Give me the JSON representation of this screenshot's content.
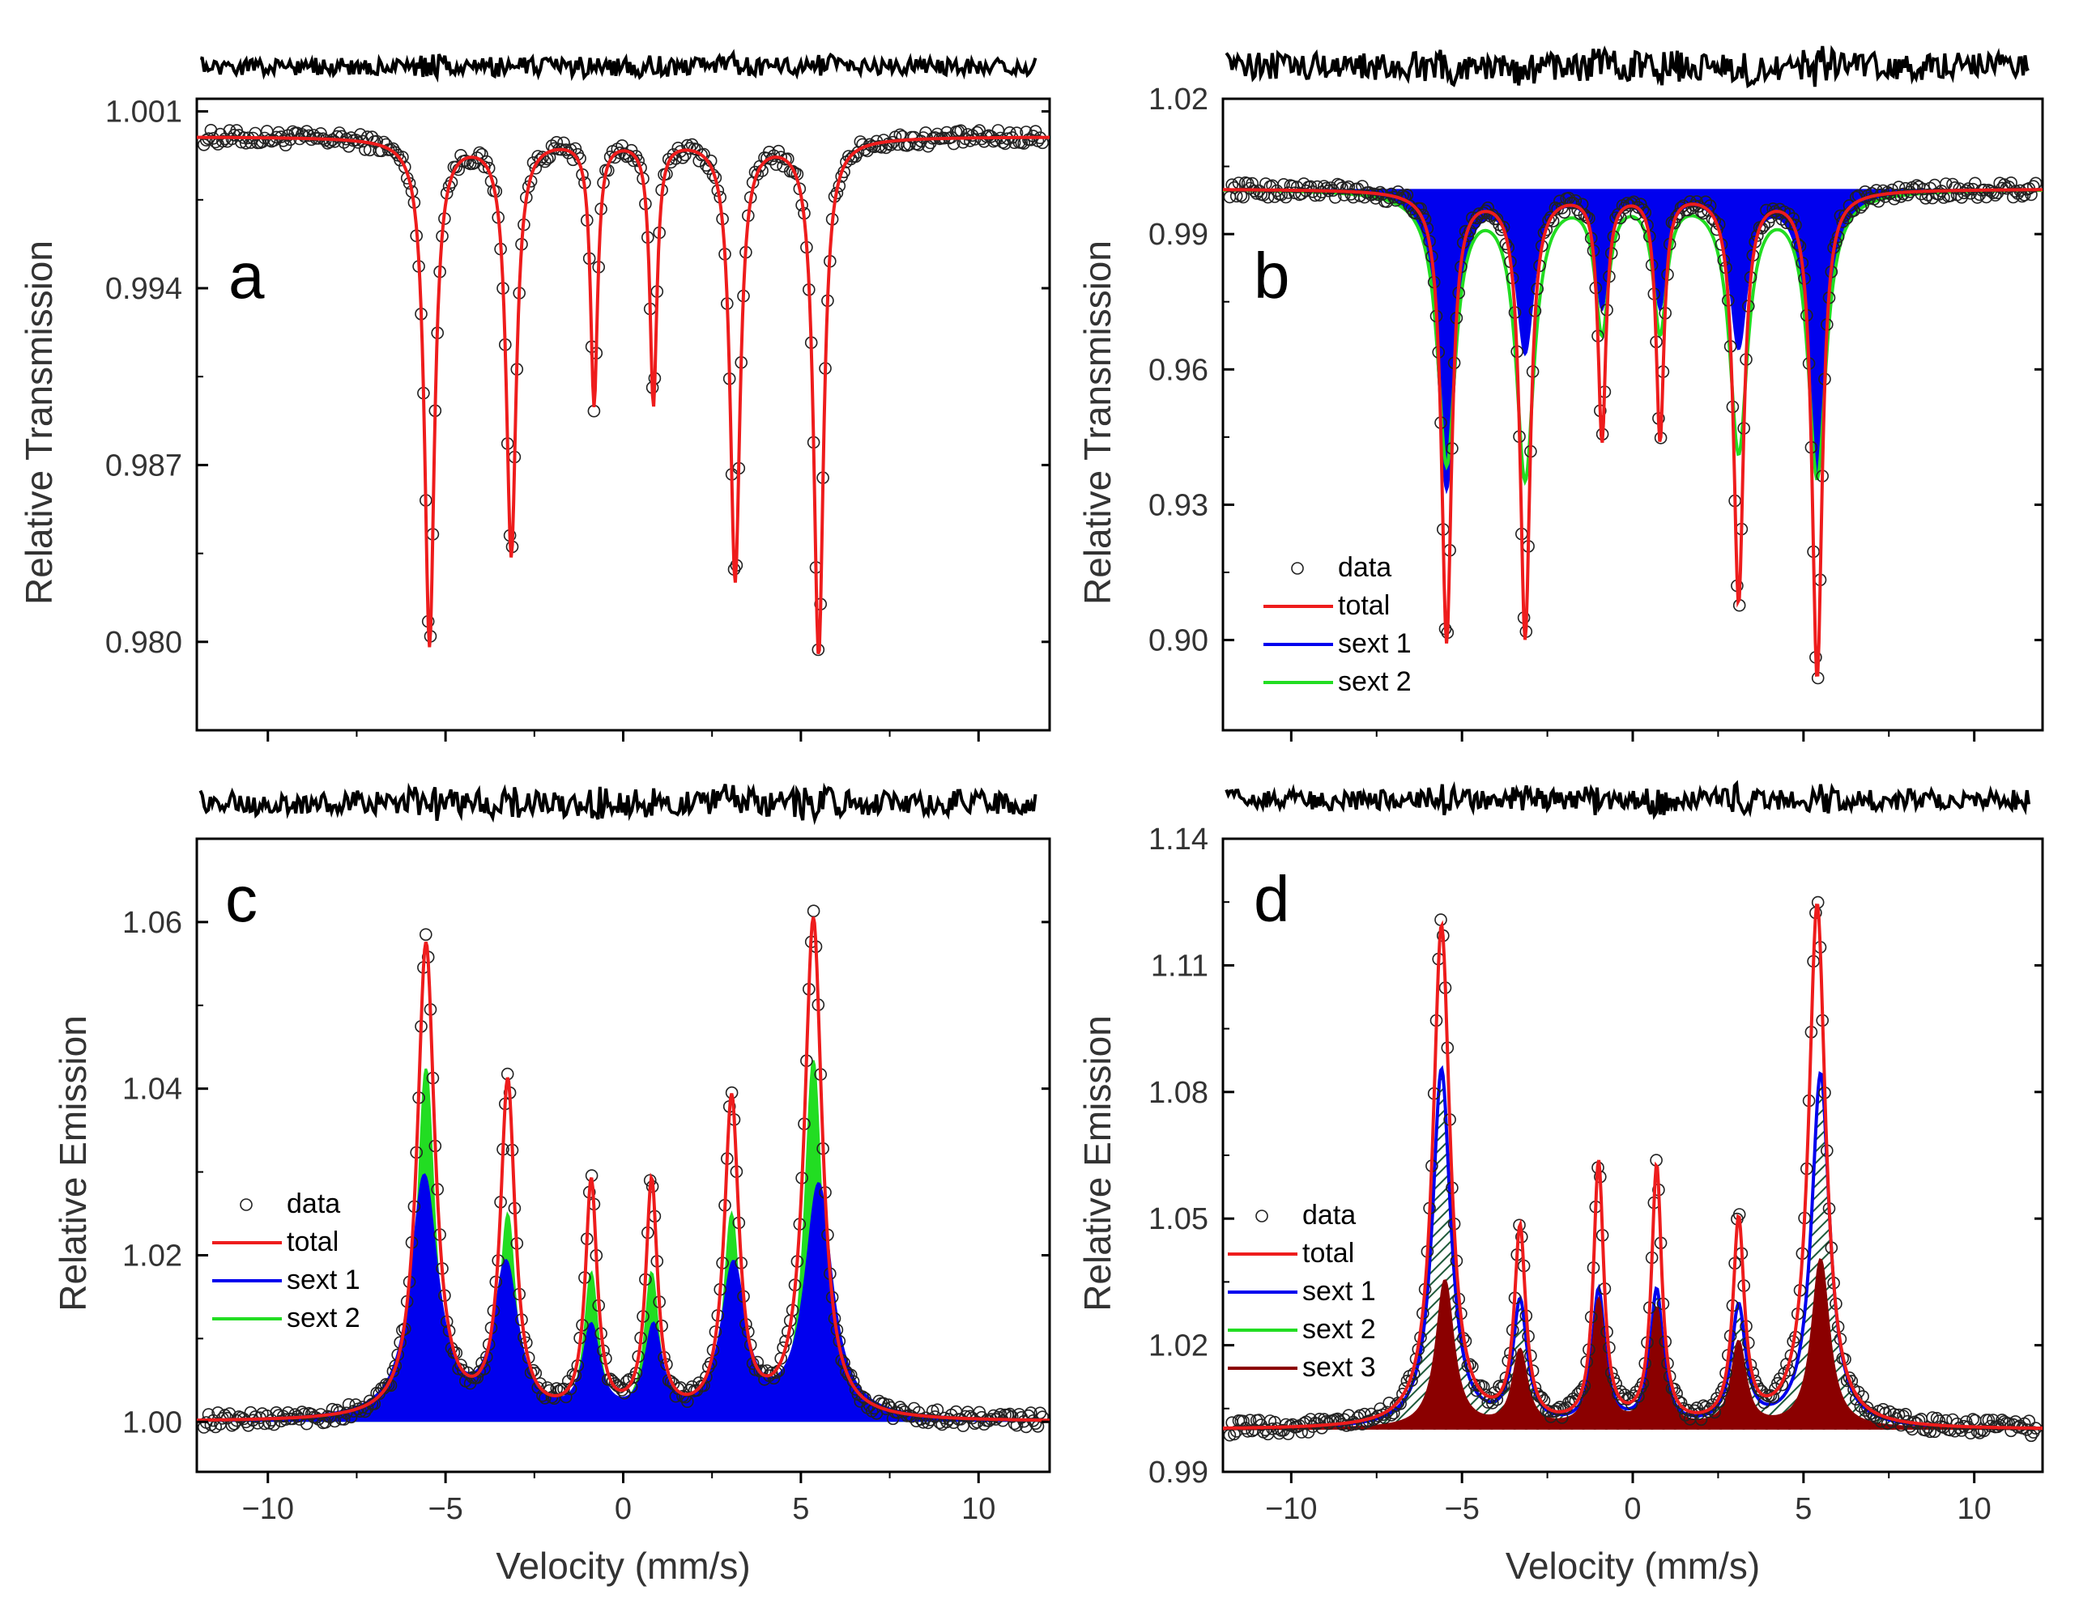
{
  "figure": {
    "description": "Four-panel Mössbauer spectroscopy figure with fit residuals above each panel"
  },
  "chart_data": [
    {
      "id": "a",
      "type": "line",
      "panel_label": "a",
      "xlabel": "",
      "ylabel": "Relative Transmission",
      "xlim": [
        -12,
        12
      ],
      "ylim": [
        0.9765,
        1.0015
      ],
      "yticks": [
        1.001,
        0.994,
        0.987,
        0.98
      ],
      "ytick_labels": [
        "1.001",
        "0.994",
        "0.987",
        "0.980"
      ],
      "xticks": [
        -10,
        -5,
        0,
        5,
        10
      ],
      "xtick_labels": [],
      "baseline": 1.0,
      "legend": [],
      "total": {
        "name": "",
        "color": "#ee1c1c",
        "peaks": [
          {
            "pos": -5.45,
            "depth": 0.0201,
            "hwhm": 0.17
          },
          {
            "pos": -3.15,
            "depth": 0.0165,
            "hwhm": 0.17
          },
          {
            "pos": -0.82,
            "depth": 0.0105,
            "hwhm": 0.12
          },
          {
            "pos": 0.85,
            "depth": 0.0105,
            "hwhm": 0.12
          },
          {
            "pos": 3.15,
            "depth": 0.0175,
            "hwhm": 0.17
          },
          {
            "pos": 5.5,
            "depth": 0.0205,
            "hwhm": 0.17
          }
        ]
      },
      "components": [],
      "residual_color": "#000000",
      "residual_amplitude": 0.35
    },
    {
      "id": "b",
      "type": "line",
      "panel_label": "b",
      "xlabel": "",
      "ylabel": "Relative Transmission",
      "xlim": [
        -12,
        12
      ],
      "ylim": [
        0.88,
        1.02
      ],
      "yticks": [
        1.02,
        0.99,
        0.96,
        0.93,
        0.9
      ],
      "ytick_labels": [
        "1.02",
        "0.99",
        "0.96",
        "0.93",
        "0.90"
      ],
      "xticks": [
        -10,
        -5,
        0,
        5,
        10
      ],
      "xtick_labels": [],
      "baseline": 1.0,
      "legend": [
        {
          "label": "data",
          "style": "circle",
          "color": "#000000"
        },
        {
          "label": "total",
          "style": "line",
          "color": "#ee1c1c"
        },
        {
          "label": "sext 1",
          "style": "line",
          "color": "#0000ee"
        },
        {
          "label": "sext 2",
          "style": "line",
          "color": "#22dd22"
        }
      ],
      "total": {
        "name": "total",
        "color": "#ee1c1c",
        "peaks": [
          {
            "pos": -5.45,
            "depth": 0.1,
            "hwhm": 0.18
          },
          {
            "pos": -3.15,
            "depth": 0.099,
            "hwhm": 0.18
          },
          {
            "pos": -0.9,
            "depth": 0.055,
            "hwhm": 0.14
          },
          {
            "pos": 0.8,
            "depth": 0.055,
            "hwhm": 0.14
          },
          {
            "pos": 3.1,
            "depth": 0.091,
            "hwhm": 0.18
          },
          {
            "pos": 5.4,
            "depth": 0.108,
            "hwhm": 0.18
          }
        ]
      },
      "components": [
        {
          "name": "sext 1",
          "color": "#0000ee",
          "fill": true,
          "peaks": [
            {
              "pos": -5.45,
              "depth": 0.066,
              "hwhm": 0.3
            },
            {
              "pos": -3.15,
              "depth": 0.035,
              "hwhm": 0.3
            },
            {
              "pos": -0.9,
              "depth": 0.025,
              "hwhm": 0.22
            },
            {
              "pos": 0.8,
              "depth": 0.025,
              "hwhm": 0.22
            },
            {
              "pos": 3.1,
              "depth": 0.034,
              "hwhm": 0.3
            },
            {
              "pos": 5.4,
              "depth": 0.063,
              "hwhm": 0.3
            }
          ]
        },
        {
          "name": "sext 2",
          "color": "#22dd22",
          "fill": false,
          "peaks": [
            {
              "pos": -5.45,
              "depth": 0.06,
              "hwhm": 0.32
            },
            {
              "pos": -3.15,
              "depth": 0.063,
              "hwhm": 0.32
            },
            {
              "pos": -0.9,
              "depth": 0.03,
              "hwhm": 0.24
            },
            {
              "pos": 0.8,
              "depth": 0.03,
              "hwhm": 0.24
            },
            {
              "pos": 3.1,
              "depth": 0.057,
              "hwhm": 0.32
            },
            {
              "pos": 5.4,
              "depth": 0.063,
              "hwhm": 0.32
            }
          ]
        }
      ],
      "residual_color": "#000000",
      "residual_amplitude": 0.55
    },
    {
      "id": "c",
      "type": "line",
      "panel_label": "c",
      "xlabel": "Velocity (mm/s)",
      "ylabel": "Relative Emission",
      "xlim": [
        -12,
        12
      ],
      "ylim": [
        0.994,
        1.07
      ],
      "yticks": [
        1.06,
        1.04,
        1.02,
        1.0
      ],
      "ytick_labels": [
        "1.06",
        "1.04",
        "1.02",
        "1.00"
      ],
      "xticks": [
        -10,
        -5,
        0,
        5,
        10
      ],
      "xtick_labels": [
        "−10",
        "−5",
        "0",
        "5",
        "10"
      ],
      "baseline": 1.0,
      "legend": [
        {
          "label": "data",
          "style": "circle",
          "color": "#000000"
        },
        {
          "label": "total",
          "style": "line",
          "color": "#ee1c1c"
        },
        {
          "label": "sext 1",
          "style": "line",
          "color": "#0000ee"
        },
        {
          "label": "sext 2",
          "style": "line",
          "color": "#22dd22"
        }
      ],
      "total": {
        "name": "total",
        "color": "#ee1c1c",
        "peaks": [
          {
            "pos": -5.55,
            "depth": -0.057,
            "hwhm": 0.3
          },
          {
            "pos": -3.25,
            "depth": -0.04,
            "hwhm": 0.25
          },
          {
            "pos": -0.9,
            "depth": -0.028,
            "hwhm": 0.2
          },
          {
            "pos": 0.8,
            "depth": -0.028,
            "hwhm": 0.2
          },
          {
            "pos": 3.05,
            "depth": -0.038,
            "hwhm": 0.25
          },
          {
            "pos": 5.35,
            "depth": -0.06,
            "hwhm": 0.3
          }
        ]
      },
      "components": [
        {
          "name": "sext 2",
          "color": "#22dd22",
          "fill": true,
          "peaks": [
            {
              "pos": -5.55,
              "depth": -0.042,
              "hwhm": 0.28
            },
            {
              "pos": -3.25,
              "depth": -0.024,
              "hwhm": 0.25
            },
            {
              "pos": -0.9,
              "depth": -0.017,
              "hwhm": 0.22
            },
            {
              "pos": 0.8,
              "depth": -0.017,
              "hwhm": 0.22
            },
            {
              "pos": 3.05,
              "depth": -0.024,
              "hwhm": 0.25
            },
            {
              "pos": 5.35,
              "depth": -0.043,
              "hwhm": 0.28
            }
          ]
        },
        {
          "name": "sext 1",
          "color": "#0000ee",
          "fill": true,
          "peaks": [
            {
              "pos": -5.6,
              "depth": -0.029,
              "hwhm": 0.45
            },
            {
              "pos": -3.3,
              "depth": -0.018,
              "hwhm": 0.4
            },
            {
              "pos": -0.9,
              "depth": -0.0105,
              "hwhm": 0.28
            },
            {
              "pos": 0.85,
              "depth": -0.0105,
              "hwhm": 0.28
            },
            {
              "pos": 3.1,
              "depth": -0.018,
              "hwhm": 0.4
            },
            {
              "pos": 5.5,
              "depth": -0.028,
              "hwhm": 0.45
            }
          ]
        }
      ],
      "residual_color": "#000000",
      "residual_amplitude": 0.55
    },
    {
      "id": "d",
      "type": "line",
      "panel_label": "d",
      "xlabel": "Velocity (mm/s)",
      "ylabel": "Relative Emission",
      "xlim": [
        -12,
        12
      ],
      "ylim": [
        0.99,
        1.14
      ],
      "yticks": [
        1.14,
        1.11,
        1.08,
        1.05,
        1.02,
        0.99
      ],
      "ytick_labels": [
        "1.14",
        "1.11",
        "1.08",
        "1.05",
        "1.02",
        "0.99"
      ],
      "xticks": [
        -10,
        -5,
        0,
        5,
        10
      ],
      "xtick_labels": [
        "−10",
        "−5",
        "0",
        "5",
        "10"
      ],
      "baseline": 1.0,
      "legend": [
        {
          "label": "data",
          "style": "circle",
          "color": "#000000"
        },
        {
          "label": "total",
          "style": "line",
          "color": "#ee1c1c"
        },
        {
          "label": "sext 1",
          "style": "line",
          "color": "#0000ee"
        },
        {
          "label": "sext 2",
          "style": "line",
          "color": "#22dd22"
        },
        {
          "label": "sext 3",
          "style": "line",
          "color": "#8b0000"
        }
      ],
      "total": {
        "name": "total",
        "color": "#ee1c1c",
        "peaks": [
          {
            "pos": -5.6,
            "depth": -0.119,
            "hwhm": 0.3
          },
          {
            "pos": -3.3,
            "depth": -0.046,
            "hwhm": 0.2
          },
          {
            "pos": -1.0,
            "depth": -0.062,
            "hwhm": 0.18
          },
          {
            "pos": 0.7,
            "depth": -0.061,
            "hwhm": 0.18
          },
          {
            "pos": 3.1,
            "depth": -0.048,
            "hwhm": 0.2
          },
          {
            "pos": 5.4,
            "depth": -0.124,
            "hwhm": 0.3
          }
        ]
      },
      "components": [
        {
          "name": "sext 1",
          "color": "#0000ee",
          "fill": false,
          "hatch": true,
          "peaks": [
            {
              "pos": -5.6,
              "depth": -0.085,
              "hwhm": 0.32
            },
            {
              "pos": -3.3,
              "depth": -0.029,
              "hwhm": 0.25
            },
            {
              "pos": -1.0,
              "depth": -0.032,
              "hwhm": 0.22
            },
            {
              "pos": 0.7,
              "depth": -0.032,
              "hwhm": 0.22
            },
            {
              "pos": 3.1,
              "depth": -0.028,
              "hwhm": 0.25
            },
            {
              "pos": 5.5,
              "depth": -0.084,
              "hwhm": 0.32
            }
          ]
        },
        {
          "name": "sext 3",
          "color": "#8b0000",
          "fill": true,
          "peaks": [
            {
              "pos": -5.5,
              "depth": -0.035,
              "hwhm": 0.3
            },
            {
              "pos": -3.3,
              "depth": -0.018,
              "hwhm": 0.25
            },
            {
              "pos": -1.0,
              "depth": -0.03,
              "hwhm": 0.22
            },
            {
              "pos": 0.7,
              "depth": -0.028,
              "hwhm": 0.22
            },
            {
              "pos": 3.1,
              "depth": -0.02,
              "hwhm": 0.25
            },
            {
              "pos": 5.5,
              "depth": -0.04,
              "hwhm": 0.3
            }
          ]
        }
      ],
      "residual_color": "#000000",
      "residual_amplitude": 0.45
    }
  ]
}
